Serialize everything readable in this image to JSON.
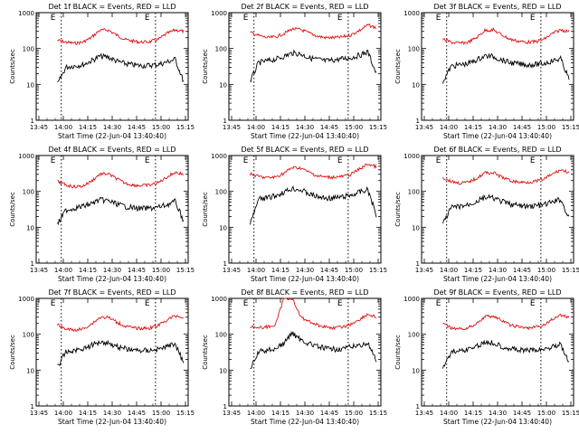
{
  "chart_data": [
    {
      "type": "line",
      "title": "Det 1f BLACK = Events, RED = LLD",
      "xlabel": "Start Time (22-Jun-04 13:40:40)",
      "ylabel": "Counts/sec",
      "yscale": "log",
      "ylim": [
        1,
        1000
      ],
      "xticks": [
        "13:45",
        "14:00",
        "14:15",
        "14:30",
        "14:45",
        "15:00",
        "15:15"
      ],
      "yticks": [
        "1",
        "10",
        "100",
        "1000"
      ],
      "marker_labels": [
        "E",
        "E"
      ],
      "series": [
        {
          "name": "LLD",
          "color": "#e01010",
          "values": [
            170,
            150,
            140,
            150,
            200,
            320,
            330,
            240,
            180,
            160,
            150,
            155,
            180,
            260,
            330,
            300
          ]
        },
        {
          "name": "Events",
          "color": "#000000",
          "values": [
            10,
            30,
            33,
            35,
            45,
            60,
            58,
            45,
            38,
            35,
            33,
            34,
            36,
            42,
            50,
            12
          ]
        }
      ]
    },
    {
      "type": "line",
      "title": "Det 2f BLACK = Events, RED = LLD",
      "xlabel": "Start Time (22-Jun-04 13:40:40)",
      "ylabel": "Counts/sec",
      "yscale": "log",
      "ylim": [
        1,
        1000
      ],
      "xticks": [
        "13:45",
        "14:00",
        "14:15",
        "14:30",
        "14:45",
        "15:00",
        "15:15"
      ],
      "yticks": [
        "1",
        "10",
        "100",
        "1000"
      ],
      "marker_labels": [
        "E",
        "E"
      ],
      "series": [
        {
          "name": "LLD",
          "color": "#e01010",
          "values": [
            280,
            230,
            200,
            210,
            260,
            350,
            340,
            270,
            220,
            200,
            200,
            210,
            240,
            320,
            450,
            380
          ]
        },
        {
          "name": "Events",
          "color": "#000000",
          "values": [
            12,
            40,
            45,
            50,
            60,
            75,
            70,
            55,
            50,
            45,
            48,
            52,
            55,
            65,
            80,
            20
          ]
        }
      ]
    },
    {
      "type": "line",
      "title": "Det 3f BLACK = Events, RED = LLD",
      "xlabel": "Start Time (22-Jun-04 13:40:40)",
      "ylabel": "Counts/sec",
      "yscale": "log",
      "ylim": [
        1,
        1000
      ],
      "xticks": [
        "13:45",
        "14:00",
        "14:15",
        "14:30",
        "14:45",
        "15:00",
        "15:15"
      ],
      "yticks": [
        "1",
        "10",
        "100",
        "1000"
      ],
      "marker_labels": [
        "E",
        "E"
      ],
      "series": [
        {
          "name": "LLD",
          "color": "#e01010",
          "values": [
            180,
            150,
            140,
            150,
            200,
            320,
            330,
            240,
            180,
            160,
            150,
            155,
            180,
            260,
            330,
            300
          ]
        },
        {
          "name": "Events",
          "color": "#000000",
          "values": [
            12,
            32,
            35,
            38,
            48,
            62,
            60,
            48,
            40,
            37,
            35,
            36,
            38,
            45,
            52,
            14
          ]
        }
      ]
    },
    {
      "type": "line",
      "title": "Det 4f BLACK = Events, RED = LLD",
      "xlabel": "Start Time (22-Jun-04 13:40:40)",
      "ylabel": "Counts/sec",
      "yscale": "log",
      "ylim": [
        1,
        1000
      ],
      "xticks": [
        "13:45",
        "14:00",
        "14:15",
        "14:30",
        "14:45",
        "15:00",
        "15:15"
      ],
      "yticks": [
        "1",
        "10",
        "100",
        "1000"
      ],
      "marker_labels": [
        "E",
        "E"
      ],
      "series": [
        {
          "name": "LLD",
          "color": "#e01010",
          "values": [
            190,
            150,
            135,
            140,
            190,
            300,
            310,
            230,
            170,
            150,
            145,
            150,
            175,
            250,
            340,
            300
          ]
        },
        {
          "name": "Events",
          "color": "#000000",
          "values": [
            12,
            30,
            34,
            38,
            45,
            58,
            55,
            45,
            38,
            35,
            33,
            34,
            36,
            42,
            52,
            15
          ]
        }
      ]
    },
    {
      "type": "line",
      "title": "Det 5f BLACK = Events, RED = LLD",
      "xlabel": "Start Time (22-Jun-04 13:40:40)",
      "ylabel": "Counts/sec",
      "yscale": "log",
      "ylim": [
        1,
        1000
      ],
      "xticks": [
        "13:45",
        "14:00",
        "14:15",
        "14:30",
        "14:45",
        "15:00",
        "15:15"
      ],
      "yticks": [
        "1",
        "10",
        "100",
        "1000"
      ],
      "marker_labels": [
        "E",
        "E"
      ],
      "series": [
        {
          "name": "LLD",
          "color": "#e01010",
          "values": [
            300,
            260,
            240,
            250,
            320,
            460,
            450,
            340,
            270,
            250,
            250,
            260,
            300,
            420,
            580,
            480
          ]
        },
        {
          "name": "Events",
          "color": "#000000",
          "values": [
            12,
            60,
            65,
            75,
            95,
            120,
            110,
            85,
            70,
            65,
            65,
            70,
            78,
            95,
            110,
            22
          ]
        }
      ]
    },
    {
      "type": "line",
      "title": "Det 6f BLACK = Events, RED = LLD",
      "xlabel": "Start Time (22-Jun-04 13:40:40)",
      "ylabel": "Counts/sec",
      "yscale": "log",
      "ylim": [
        1,
        1000
      ],
      "xticks": [
        "13:45",
        "14:00",
        "14:15",
        "14:30",
        "14:45",
        "15:00",
        "15:15"
      ],
      "yticks": [
        "1",
        "10",
        "100",
        "1000"
      ],
      "marker_labels": [
        "E",
        "E"
      ],
      "series": [
        {
          "name": "LLD",
          "color": "#e01010",
          "values": [
            240,
            190,
            170,
            180,
            230,
            330,
            330,
            250,
            200,
            180,
            180,
            190,
            220,
            300,
            400,
            340
          ]
        },
        {
          "name": "Events",
          "color": "#000000",
          "values": [
            12,
            35,
            38,
            42,
            52,
            68,
            65,
            52,
            44,
            40,
            38,
            40,
            42,
            50,
            60,
            18
          ]
        }
      ]
    },
    {
      "type": "line",
      "title": "Det 7f BLACK = Events, RED = LLD",
      "xlabel": "Start Time (22-Jun-04 13:40:40)",
      "ylabel": "Counts/sec",
      "yscale": "log",
      "ylim": [
        1,
        1000
      ],
      "xticks": [
        "13:45",
        "14:00",
        "14:15",
        "14:30",
        "14:45",
        "15:00",
        "15:15"
      ],
      "yticks": [
        "1",
        "10",
        "100",
        "1000"
      ],
      "marker_labels": [
        "E",
        "E"
      ],
      "series": [
        {
          "name": "LLD",
          "color": "#e01010",
          "values": [
            180,
            140,
            130,
            140,
            190,
            290,
            300,
            220,
            170,
            150,
            145,
            150,
            175,
            250,
            330,
            290
          ]
        },
        {
          "name": "Events",
          "color": "#000000",
          "values": [
            12,
            32,
            35,
            40,
            48,
            62,
            58,
            46,
            40,
            36,
            35,
            36,
            38,
            45,
            55,
            16
          ]
        }
      ]
    },
    {
      "type": "line",
      "title": "Det 8f BLACK = Events, RED = LLD",
      "xlabel": "Start Time (22-Jun-04 13:40:40)",
      "ylabel": "Counts/sec",
      "yscale": "log",
      "ylim": [
        1,
        1000
      ],
      "xticks": [
        "13:45",
        "14:00",
        "14:15",
        "14:30",
        "14:45",
        "15:00",
        "15:15"
      ],
      "yticks": [
        "1",
        "10",
        "100",
        "1000"
      ],
      "marker_labels": [
        "E",
        "E"
      ],
      "series": [
        {
          "name": "LLD",
          "color": "#e01010",
          "values": [
            170,
            150,
            160,
            180,
            1000,
            1000,
            300,
            230,
            180,
            160,
            150,
            160,
            190,
            260,
            360,
            300
          ]
        },
        {
          "name": "Events",
          "color": "#000000",
          "values": [
            10,
            32,
            36,
            40,
            55,
            110,
            70,
            55,
            45,
            40,
            38,
            40,
            44,
            50,
            55,
            18
          ]
        }
      ]
    },
    {
      "type": "line",
      "title": "Det 9f BLACK = Events, RED = LLD",
      "xlabel": "Start Time (22-Jun-04 13:40:40)",
      "ylabel": "Counts/sec",
      "yscale": "log",
      "ylim": [
        1,
        1000
      ],
      "xticks": [
        "13:45",
        "14:00",
        "14:15",
        "14:30",
        "14:45",
        "15:00",
        "15:15"
      ],
      "yticks": [
        "1",
        "10",
        "100",
        "1000"
      ],
      "marker_labels": [
        "E",
        "E"
      ],
      "series": [
        {
          "name": "LLD",
          "color": "#e01010",
          "values": [
            190,
            150,
            140,
            150,
            200,
            310,
            320,
            240,
            180,
            160,
            150,
            155,
            180,
            260,
            340,
            300
          ]
        },
        {
          "name": "Events",
          "color": "#000000",
          "values": [
            12,
            32,
            35,
            38,
            46,
            60,
            58,
            46,
            40,
            36,
            35,
            36,
            38,
            45,
            54,
            15
          ]
        }
      ]
    }
  ]
}
